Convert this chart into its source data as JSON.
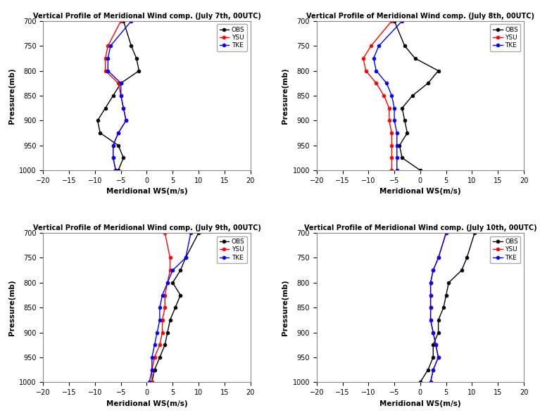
{
  "titles": [
    "Vertical Profile of Meridional Wind comp. (July 7th, 00UTC)",
    "Vertical Profile of Meridional Wind comp. (July 8th, 00UTC)",
    "Vertical Profile of Meridional Wind comp. (July 9th, 00UTC)",
    "Vertical Profile of Meridional Wind comp. (July 10th, 00UTC)"
  ],
  "pressure_levels": [
    700,
    750,
    775,
    800,
    825,
    850,
    875,
    900,
    925,
    950,
    975,
    1000
  ],
  "xlabel": "Meridional WS(m/s)",
  "ylabel": "Pressure(mb)",
  "xlim": [
    -20,
    20
  ],
  "ylim": [
    700,
    1000
  ],
  "xticks": [
    -20,
    -15,
    -10,
    -5,
    0,
    5,
    10,
    15,
    20
  ],
  "yticks": [
    700,
    750,
    800,
    850,
    900,
    950,
    1000
  ],
  "colors": {
    "OBS": "#000000",
    "YSU": "#ff0000",
    "TKE": "#0000ff"
  },
  "legend_labels": [
    "OBS",
    "YSU",
    "TKE"
  ],
  "panel1": {
    "OBS": [
      -4.5,
      -3.0,
      -2.0,
      -1.5,
      -5.0,
      -6.5,
      -8.0,
      -9.5,
      -9.0,
      -5.5,
      -4.5,
      -5.5
    ],
    "YSU": [
      -5.0,
      -7.5,
      -8.0,
      -8.0,
      -5.5,
      -5.0,
      -4.5,
      -4.0,
      -5.5,
      -6.5,
      -6.5,
      -6.0
    ],
    "TKE": [
      -3.0,
      -7.0,
      -7.5,
      -7.5,
      -5.0,
      -5.0,
      -4.5,
      -4.0,
      -5.5,
      -6.5,
      -6.5,
      -6.0
    ]
  },
  "panel2": {
    "OBS": [
      -5.0,
      -3.0,
      -1.0,
      3.5,
      1.5,
      -1.5,
      -3.5,
      -3.0,
      -2.5,
      -4.0,
      -3.5,
      0.0
    ],
    "YSU": [
      -5.5,
      -9.5,
      -11.0,
      -10.5,
      -8.5,
      -7.0,
      -6.0,
      -6.0,
      -5.5,
      -5.5,
      -5.5,
      -5.5
    ],
    "TKE": [
      -3.5,
      -8.0,
      -9.0,
      -8.5,
      -6.5,
      -5.5,
      -5.0,
      -5.0,
      -4.5,
      -4.5,
      -4.5,
      -4.5
    ]
  },
  "panel3": {
    "OBS": [
      10.0,
      7.5,
      6.5,
      5.0,
      6.5,
      5.5,
      4.5,
      4.0,
      3.5,
      2.5,
      1.5,
      1.0
    ],
    "YSU": [
      3.5,
      4.5,
      4.5,
      4.0,
      3.5,
      3.5,
      3.0,
      3.0,
      2.5,
      1.5,
      1.0,
      1.0
    ],
    "TKE": [
      8.5,
      7.5,
      5.0,
      4.0,
      3.0,
      2.5,
      2.5,
      2.0,
      1.5,
      1.0,
      1.0,
      0.5
    ]
  },
  "panel4": {
    "OBS": [
      10.5,
      9.0,
      8.0,
      5.5,
      5.0,
      4.5,
      3.5,
      3.5,
      2.5,
      2.5,
      1.5,
      0.0
    ],
    "YSU": [
      5.0,
      3.5,
      2.5,
      2.0,
      2.0,
      2.0,
      2.0,
      2.5,
      3.0,
      3.5,
      2.5,
      2.0
    ],
    "TKE": [
      5.0,
      3.5,
      2.5,
      2.0,
      2.0,
      2.0,
      2.0,
      2.5,
      3.0,
      3.5,
      2.5,
      2.0
    ]
  }
}
